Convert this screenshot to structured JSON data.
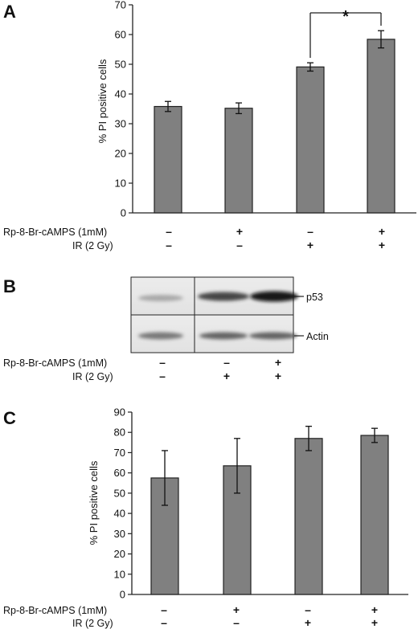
{
  "figure": {
    "panels": [
      {
        "letter": "A",
        "condition_labels": [
          "Rp-8-Br-cAMPS (1mM)",
          "IR (2 Gy)"
        ],
        "condition_signs": [
          [
            "–",
            "+",
            "–",
            "+"
          ],
          [
            "–",
            "–",
            "+",
            "+"
          ]
        ],
        "significance": "*"
      },
      {
        "letter": "B",
        "bands": [
          "p53",
          "Actin"
        ],
        "condition_labels": [
          "Rp-8-Br-cAMPS (1mM)",
          "IR (2 Gy)"
        ],
        "condition_signs": [
          [
            "–",
            "–",
            "+"
          ],
          [
            "–",
            "+",
            "+"
          ]
        ]
      },
      {
        "letter": "C",
        "condition_labels": [
          "Rp-8-Br-cAMPS (1mM)",
          "IR (2 Gy)"
        ],
        "condition_signs": [
          [
            "–",
            "+",
            "–",
            "+"
          ],
          [
            "–",
            "–",
            "+",
            "+"
          ]
        ]
      }
    ]
  },
  "chart_data": [
    {
      "panel": "A",
      "type": "bar",
      "categories": [
        "–/–",
        "+/–",
        "–/+",
        "+/+"
      ],
      "values": [
        35.8,
        35.2,
        49.1,
        58.4
      ],
      "errors": [
        1.7,
        1.8,
        1.4,
        2.9
      ],
      "ylabel": "% PI positive cells",
      "ylim": [
        0,
        70
      ],
      "yticks": [
        0,
        10,
        20,
        30,
        40,
        50,
        60,
        70
      ],
      "bar_color": "#808080",
      "grid": false,
      "significance": {
        "between": [
          2,
          3
        ],
        "label": "*"
      }
    },
    {
      "panel": "C",
      "type": "bar",
      "categories": [
        "–/–",
        "+/–",
        "–/+",
        "+/+"
      ],
      "values": [
        57.5,
        63.5,
        77.0,
        78.5
      ],
      "errors": [
        13.5,
        13.5,
        6.0,
        3.5
      ],
      "ylabel": "% PI positive cells",
      "ylim": [
        0,
        90
      ],
      "yticks": [
        0,
        10,
        20,
        30,
        40,
        50,
        60,
        70,
        80,
        90
      ],
      "bar_color": "#808080",
      "grid": false
    }
  ]
}
